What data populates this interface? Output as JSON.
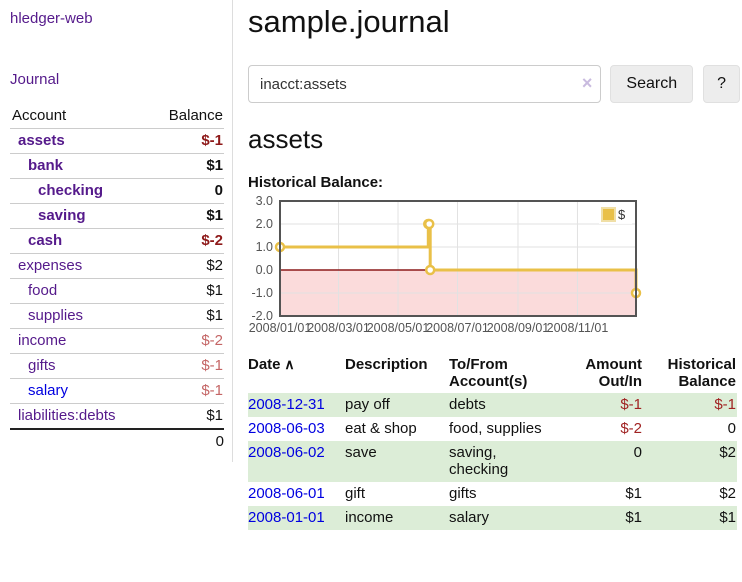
{
  "app": {
    "brand": "hledger-web"
  },
  "sidebar": {
    "journal_link": "Journal",
    "account_header": "Account",
    "balance_header": "Balance",
    "accounts": [
      {
        "account": "assets",
        "balance": "$-1",
        "indent": 1,
        "bold": true,
        "account_color": "purple",
        "balance_tone": "neg-strong"
      },
      {
        "account": "bank",
        "balance": "$1",
        "indent": 2,
        "bold": true,
        "account_color": "purple",
        "balance_tone": "plain"
      },
      {
        "account": "checking",
        "balance": "0",
        "indent": 3,
        "bold": true,
        "account_color": "purple",
        "balance_tone": "plain"
      },
      {
        "account": "saving",
        "balance": "$1",
        "indent": 3,
        "bold": true,
        "account_color": "purple",
        "balance_tone": "plain"
      },
      {
        "account": "cash",
        "balance": "$-2",
        "indent": 2,
        "bold": true,
        "account_color": "purple",
        "balance_tone": "neg-strong"
      },
      {
        "account": "expenses",
        "balance": "$2",
        "indent": 1,
        "bold": false,
        "account_color": "purple",
        "balance_tone": "plain"
      },
      {
        "account": "food",
        "balance": "$1",
        "indent": 2,
        "bold": false,
        "account_color": "purple",
        "balance_tone": "plain"
      },
      {
        "account": "supplies",
        "balance": "$1",
        "indent": 2,
        "bold": false,
        "account_color": "purple",
        "balance_tone": "plain"
      },
      {
        "account": "income",
        "balance": "$-2",
        "indent": 1,
        "bold": false,
        "account_color": "purple",
        "balance_tone": "neg-soft"
      },
      {
        "account": "gifts",
        "balance": "$-1",
        "indent": 2,
        "bold": false,
        "account_color": "purple",
        "balance_tone": "neg-soft"
      },
      {
        "account": "salary",
        "balance": "$-1",
        "indent": 2,
        "bold": false,
        "account_color": "blue",
        "balance_tone": "neg-soft"
      },
      {
        "account": "liabilities:debts",
        "balance": "$1",
        "indent": 1,
        "bold": false,
        "account_color": "purple",
        "balance_tone": "plain"
      }
    ],
    "total": "0"
  },
  "main": {
    "title": "sample.journal",
    "search": {
      "value": "inacct:assets",
      "clear_icon": "×",
      "search_button": "Search",
      "help_button": "?"
    },
    "account_heading": "assets",
    "chart_label": "Historical Balance:"
  },
  "chart_data": {
    "type": "line",
    "title": "Historical Balance:",
    "series": [
      {
        "name": "$",
        "step": "after",
        "points": [
          {
            "date": "2008-01-01",
            "value": 1
          },
          {
            "date": "2008-06-01",
            "value": 2
          },
          {
            "date": "2008-06-02",
            "value": 2
          },
          {
            "date": "2008-06-03",
            "value": 0
          },
          {
            "date": "2008-12-31",
            "value": -1
          }
        ]
      }
    ],
    "xrange": [
      "2008-01-01",
      "2008-12-31"
    ],
    "ylim": [
      -2,
      3
    ],
    "yticks": [
      "3.0",
      "2.0",
      "1.0",
      "0.0",
      "-1.0",
      "-2.0"
    ],
    "ytick_values": [
      3,
      2,
      1,
      0,
      -1,
      -2
    ],
    "xticks": [
      "2008/01/01",
      "2008/03/01",
      "2008/05/01",
      "2008/07/01",
      "2008/09/01",
      "2008/11/01"
    ],
    "xtick_dates": [
      "2008-01-01",
      "2008-03-01",
      "2008-05-01",
      "2008-07-01",
      "2008-09-01",
      "2008-11-01"
    ],
    "grid": true,
    "legend": {
      "label": "$",
      "position": "top-right"
    },
    "negative_region": true
  },
  "register": {
    "headers": [
      {
        "label": "Date",
        "sort_icon": "∧",
        "align": "left"
      },
      {
        "label": "Description",
        "align": "left"
      },
      {
        "label": "To/From Account(s)",
        "align": "left"
      },
      {
        "label": "Amount Out/In",
        "align": "right"
      },
      {
        "label": "Historical Balance",
        "align": "right"
      }
    ],
    "rows": [
      {
        "date": "2008-12-31",
        "description": "pay off",
        "accounts": "debts",
        "amount": "$-1",
        "balance": "$-1"
      },
      {
        "date": "2008-06-03",
        "description": "eat & shop",
        "accounts": "food, supplies",
        "amount": "$-2",
        "balance": "0"
      },
      {
        "date": "2008-06-02",
        "description": "save",
        "accounts": "saving,\nchecking",
        "amount": "0",
        "balance": "$2"
      },
      {
        "date": "2008-06-01",
        "description": "gift",
        "accounts": "gifts",
        "amount": "$1",
        "balance": "$2"
      },
      {
        "date": "2008-01-01",
        "description": "income",
        "accounts": "salary",
        "amount": "$1",
        "balance": "$1"
      }
    ]
  },
  "colors": {
    "purple_link": "#551a8b",
    "blue_link": "#0000e0",
    "negative_strong": "#8e1919",
    "negative_soft": "#c46565",
    "negative_register": "#a02222",
    "row_stripe_green": "#dcedd7",
    "chart_line": "#e9c048",
    "chart_negative_fill": "#f9cfcf",
    "chart_zero_line": "#8c1a1a",
    "chart_border": "#545454",
    "chart_grid": "#e2e2e2",
    "chart_tick_text": "#545454"
  }
}
